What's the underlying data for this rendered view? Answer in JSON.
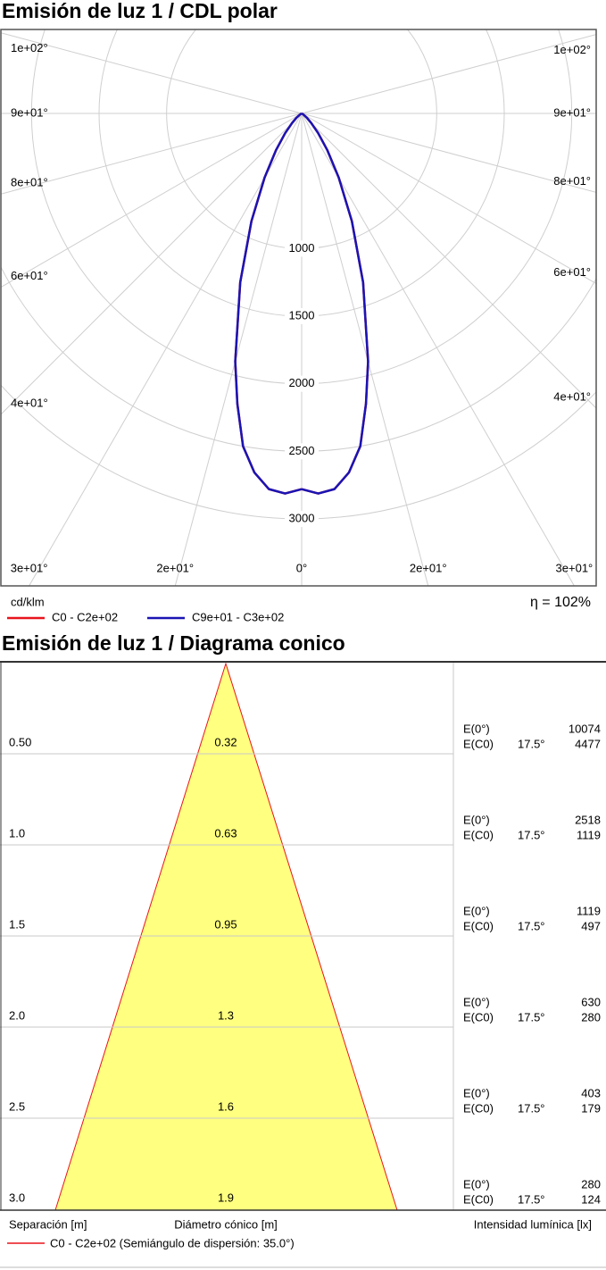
{
  "chart_data": {
    "type": "polar",
    "title": "Emisión de luz 1 / CDL polar",
    "unit": "cd/klm",
    "efficiency": "η = 102%",
    "rlim": [
      0,
      3000
    ],
    "rticks": [
      1000,
      1500,
      2000,
      2500,
      3000
    ],
    "angle_ticks": [
      {
        "value": 0,
        "label": "0°"
      },
      {
        "value": 15,
        "label": "2e+01°"
      },
      {
        "value": 30,
        "label": "3e+01°"
      },
      {
        "value": 45,
        "label": "4e+01°"
      },
      {
        "value": 60,
        "label": "6e+01°"
      },
      {
        "value": 75,
        "label": "8e+01°"
      },
      {
        "value": 90,
        "label": "9e+01°"
      },
      {
        "value": 105,
        "label": "1e+02°"
      }
    ],
    "x": [
      0,
      2.5,
      5,
      7.5,
      10,
      12.5,
      15,
      20,
      25,
      30,
      35,
      40,
      45,
      50,
      60,
      70,
      80,
      90
    ],
    "series": [
      {
        "name": "C0 - C2e+02",
        "color": "#e8141c",
        "values": [
          2780,
          2815,
          2790,
          2680,
          2500,
          2200,
          1900,
          1330,
          880,
          550,
          330,
          190,
          100,
          50,
          10,
          0,
          0,
          0
        ]
      },
      {
        "name": "C9e+01 - C3e+02",
        "color": "#1a14b4",
        "values": [
          2780,
          2815,
          2790,
          2680,
          2500,
          2200,
          1900,
          1330,
          880,
          550,
          330,
          190,
          100,
          50,
          10,
          0,
          0,
          0
        ]
      }
    ],
    "grid": true
  },
  "cone_diagram": {
    "title": "Emisión de luz 1 / Diagrama conico",
    "e0_label": "E(0°)",
    "ec0_label": "E(C0)",
    "rows": [
      {
        "distance": "0.50",
        "diameter": "0.32",
        "e0": "10074",
        "angle": "17.5°",
        "ec0": "4477"
      },
      {
        "distance": "1.0",
        "diameter": "0.63",
        "e0": "2518",
        "angle": "17.5°",
        "ec0": "1119"
      },
      {
        "distance": "1.5",
        "diameter": "0.95",
        "e0": "1119",
        "angle": "17.5°",
        "ec0": "497"
      },
      {
        "distance": "2.0",
        "diameter": "1.3",
        "e0": "630",
        "angle": "17.5°",
        "ec0": "280"
      },
      {
        "distance": "2.5",
        "diameter": "1.6",
        "e0": "403",
        "angle": "17.5°",
        "ec0": "179"
      },
      {
        "distance": "3.0",
        "diameter": "1.9",
        "e0": "280",
        "angle": "17.5°",
        "ec0": "124"
      }
    ],
    "x_label_left": "Separación [m]",
    "x_label_center": "Diámetro cónico [m]",
    "x_label_right": "Intensidad lumínica [lx]",
    "legend": "C0 - C2e+02 (Semiángulo de dispersión: 35.0°)"
  }
}
